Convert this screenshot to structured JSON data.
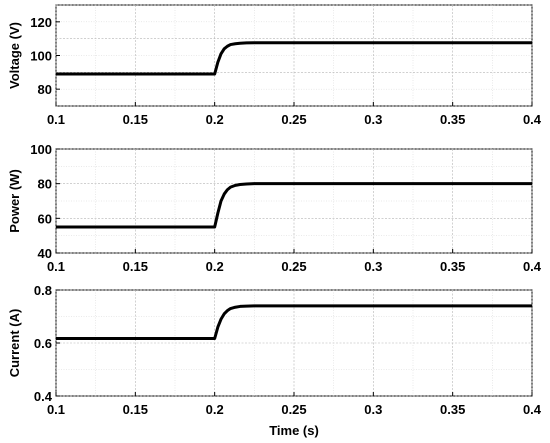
{
  "chart_data": [
    {
      "type": "line",
      "ylabel": "Voltage (V)",
      "xlabel": "",
      "xlim": [
        0.1,
        0.4
      ],
      "ylim": [
        70,
        130
      ],
      "xticks": [
        0.1,
        0.15,
        0.2,
        0.25,
        0.3,
        0.35,
        0.4
      ],
      "xtick_labels": [
        "0.1",
        "0.15",
        "0.2",
        "0.25",
        "0.3",
        "0.35",
        "0.4"
      ],
      "yticks": [
        80,
        100,
        120
      ],
      "ytick_labels": [
        "80",
        "100",
        "120"
      ],
      "grid": true,
      "series": [
        {
          "color": "#000000",
          "x": [
            0.1,
            0.199,
            0.2,
            0.202,
            0.204,
            0.206,
            0.208,
            0.21,
            0.213,
            0.216,
            0.22,
            0.225,
            0.23,
            0.4
          ],
          "y": [
            89,
            89,
            89,
            96,
            101,
            104,
            105.5,
            106.5,
            107,
            107.3,
            107.5,
            107.6,
            107.6,
            107.6
          ]
        }
      ]
    },
    {
      "type": "line",
      "ylabel": "Power (W)",
      "xlabel": "",
      "xlim": [
        0.1,
        0.4
      ],
      "ylim": [
        40,
        100
      ],
      "xticks": [
        0.1,
        0.15,
        0.2,
        0.25,
        0.3,
        0.35,
        0.4
      ],
      "xtick_labels": [
        "0.1",
        "0.15",
        "0.2",
        "0.25",
        "0.3",
        "0.35",
        "0.4"
      ],
      "yticks": [
        40,
        60,
        80,
        100
      ],
      "ytick_labels": [
        "40",
        "60",
        "80",
        "100"
      ],
      "grid": true,
      "series": [
        {
          "color": "#000000",
          "x": [
            0.1,
            0.199,
            0.2,
            0.202,
            0.204,
            0.206,
            0.208,
            0.21,
            0.213,
            0.216,
            0.22,
            0.225,
            0.23,
            0.4
          ],
          "y": [
            55,
            55,
            55,
            63,
            70,
            74,
            76.5,
            78,
            79,
            79.5,
            79.8,
            80,
            80,
            80
          ]
        }
      ]
    },
    {
      "type": "line",
      "ylabel": "Current (A)",
      "xlabel": "Time (s)",
      "xlim": [
        0.1,
        0.4
      ],
      "ylim": [
        0.4,
        0.8
      ],
      "xticks": [
        0.1,
        0.15,
        0.2,
        0.25,
        0.3,
        0.35,
        0.4
      ],
      "xtick_labels": [
        "0.1",
        "0.15",
        "0.2",
        "0.25",
        "0.3",
        "0.35",
        "0.4"
      ],
      "yticks": [
        0.4,
        0.6,
        0.8
      ],
      "ytick_labels": [
        "0.4",
        "0.6",
        "0.8"
      ],
      "grid": true,
      "series": [
        {
          "color": "#000000",
          "x": [
            0.1,
            0.199,
            0.2,
            0.202,
            0.204,
            0.206,
            0.208,
            0.21,
            0.213,
            0.216,
            0.22,
            0.225,
            0.23,
            0.4
          ],
          "y": [
            0.617,
            0.617,
            0.617,
            0.66,
            0.69,
            0.71,
            0.722,
            0.73,
            0.735,
            0.738,
            0.739,
            0.74,
            0.74,
            0.74
          ]
        }
      ]
    }
  ]
}
